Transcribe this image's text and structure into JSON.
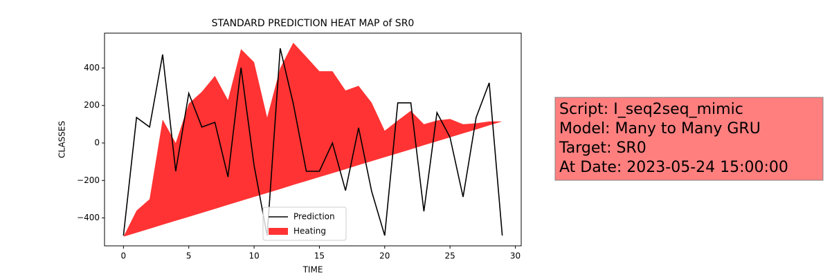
{
  "chart_data": {
    "type": "line-area",
    "title": "STANDARD PREDICTION HEAT MAP of SR0",
    "xlabel": "TIME",
    "ylabel": "CLASSES",
    "x": [
      0,
      1,
      2,
      3,
      4,
      5,
      6,
      7,
      8,
      9,
      10,
      11,
      12,
      13,
      14,
      15,
      16,
      17,
      18,
      19,
      20,
      21,
      22,
      23,
      24,
      25,
      26,
      27,
      28,
      29
    ],
    "series": [
      {
        "name": "Prediction",
        "type": "line",
        "color": "#000000",
        "values": [
          -494,
          136,
          85,
          472,
          -151,
          265,
          85,
          110,
          -181,
          402,
          -120,
          -494,
          505,
          210,
          -151,
          -151,
          0,
          -254,
          81,
          -258,
          -494,
          214,
          214,
          -365,
          162,
          30,
          -288,
          136,
          321,
          -494
        ]
      },
      {
        "name": "Heating",
        "type": "area",
        "color": "#ff3333",
        "upper": [
          -500,
          -361,
          -300,
          125,
          0,
          210,
          273,
          358,
          229,
          501,
          431,
          136,
          400,
          535,
          460,
          383,
          383,
          280,
          305,
          215,
          65,
          120,
          172,
          100,
          120,
          128,
          100,
          105,
          115,
          115
        ],
        "lower": [
          -500,
          -479,
          -458,
          -436,
          -415,
          -394,
          -373,
          -352,
          -330,
          -309,
          -288,
          -267,
          -246,
          -224,
          -203,
          -182,
          -161,
          -140,
          -118,
          -97,
          -76,
          -55,
          -34,
          -12,
          9,
          30,
          51,
          72,
          94,
          115
        ]
      }
    ],
    "xlim": [
      -1.45,
      30.45
    ],
    "ylim": [
      -549,
      586
    ],
    "xticks": [
      0,
      5,
      10,
      15,
      20,
      25,
      30
    ],
    "yticks": [
      {
        "value": -400,
        "label": "−400"
      },
      {
        "value": -200,
        "label": "−200"
      },
      0,
      200,
      400
    ],
    "legend": "lower center",
    "annotation": [
      "Script: I_seq2seq_mimic",
      "Model: Many to Many GRU",
      "Target: SR0",
      "At Date: 2023-05-24 15:00:00"
    ]
  }
}
